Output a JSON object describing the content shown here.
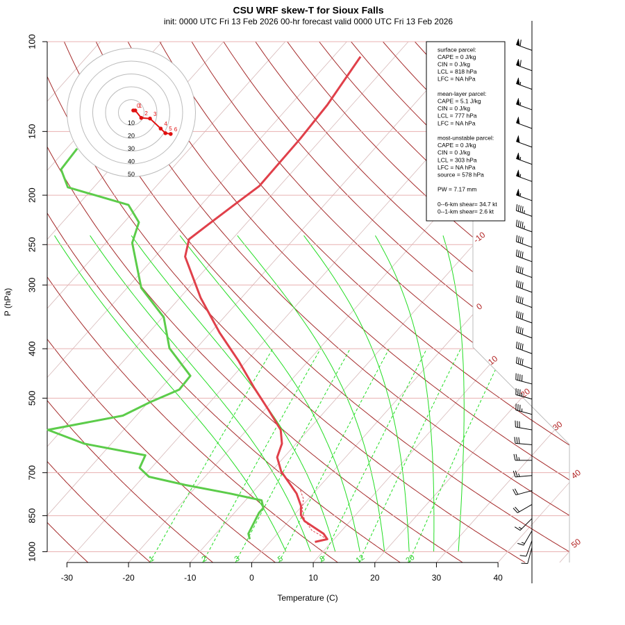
{
  "chart_data": {
    "type": "skewt",
    "title": "CSU WRF skew-T for Sioux Falls",
    "subtitle": "init: 0000 UTC Fri 13 Feb 2026     00-hr forecast valid 0000 UTC Fri 13 Feb 2026",
    "x_label": "Temperature (C)",
    "y_label": "P (hPa)",
    "xlim": [
      -33.2,
      51.6
    ],
    "ylim": [
      1050,
      100
    ],
    "log_y": true,
    "xticks": [
      -30,
      -20,
      -10,
      0,
      10,
      20,
      30,
      40
    ],
    "yticks": [
      100,
      150,
      200,
      250,
      300,
      400,
      500,
      700,
      850,
      1000
    ],
    "series": [
      {
        "color": "#e0404a",
        "width": 3,
        "dashed": false,
        "pressure": [
          957,
          945,
          922,
          871,
          847,
          813,
          769,
          696,
          653,
          614,
          577,
          525,
          478,
          422,
          372,
          318,
          264,
          244,
          228,
          207,
          192,
          155,
          133,
          107
        ],
        "values": [
          7.3,
          8.9,
          7.5,
          2.6,
          1.1,
          -0.2,
          -2.7,
          -8.4,
          -11.1,
          -12.3,
          -14.5,
          -19.6,
          -24.8,
          -31.4,
          -38.5,
          -46.6,
          -55.1,
          -57.0,
          -56.0,
          -54.5,
          -53.3,
          -53.5,
          -54.0,
          -55.6
        ]
      },
      {
        "color": "#5ccc4a",
        "width": 3,
        "dashed": false,
        "pressure": [
          945,
          922,
          839,
          821,
          793,
          769,
          740,
          713,
          685,
          647,
          614,
          577,
          541,
          509,
          481,
          452,
          399,
          347,
          304,
          248,
          226,
          209,
          193,
          178,
          162
        ],
        "values": [
          -3.7,
          -4.7,
          -6.0,
          -6.0,
          -7.4,
          -13.5,
          -22.0,
          -29.1,
          -31.9,
          -32.8,
          -44.4,
          -52.3,
          -42.2,
          -39.7,
          -36.8,
          -37.0,
          -44.4,
          -49.8,
          -57.7,
          -65.7,
          -67.6,
          -71.8,
          -84.2,
          -87.9,
          -88.3
        ]
      },
      {
        "color": "#e0404a",
        "width": 1,
        "dashed": true,
        "pressure": [
          945,
          908,
          866,
          826,
          788,
          752
        ],
        "values": [
          8.9,
          5.1,
          2.4,
          0.5,
          -0.8,
          -2.9
        ]
      }
    ],
    "isotherm_labels": [
      -10,
      0,
      10,
      20,
      30,
      40,
      50
    ],
    "mixing_ratio_labels": [
      1,
      2,
      3,
      5,
      8,
      12,
      20
    ],
    "wind": {
      "pressure": [
        104,
        114,
        124,
        136,
        148,
        161,
        174,
        188,
        205,
        220,
        236,
        253,
        270,
        290,
        310,
        332,
        356,
        381,
        409,
        438,
        469,
        502,
        538,
        577,
        617,
        662,
        709,
        759,
        808,
        861,
        910,
        951,
        981
      ],
      "speed": [
        60,
        60,
        55,
        55,
        50,
        50,
        55,
        55,
        55,
        45,
        45,
        40,
        40,
        40,
        40,
        40,
        40,
        40,
        40,
        40,
        40,
        35,
        35,
        30,
        30,
        25,
        25,
        20,
        20,
        15,
        15,
        10,
        10
      ],
      "direction": [
        290,
        290,
        290,
        290,
        290,
        290,
        290,
        290,
        290,
        290,
        290,
        290,
        290,
        290,
        290,
        290,
        290,
        290,
        290,
        290,
        285,
        285,
        285,
        280,
        275,
        270,
        265,
        255,
        240,
        225,
        210,
        200,
        195
      ]
    },
    "hodograph": {
      "rings": [
        10,
        20,
        30,
        40,
        50
      ],
      "heights": [
        0,
        1,
        2,
        3,
        4,
        5,
        6
      ],
      "u": [
        1.6,
        3.1,
        7.8,
        14.6,
        22.9,
        26.6,
        30.7
      ],
      "v": [
        1.6,
        1.6,
        -4.2,
        -4.7,
        -12.5,
        -16.1,
        -16.7
      ],
      "color": "#e01010"
    },
    "info_box": [
      [
        "surface parcel:",
        "CAPE = 0 J/kg",
        "CIN = 0 J/kg",
        "LCL = 818 hPa",
        "LFC = NA hPa"
      ],
      [
        "mean-layer parcel:",
        "CAPE = 5.1 J/kg",
        "CIN = 0 J/kg",
        "LCL = 777 hPa",
        "LFC = NA hPa"
      ],
      [
        "most-unstable parcel:",
        "CAPE = 0 J/kg",
        "CIN = 0 J/kg",
        "LCL = 303 hPa",
        "LFC = NA hPa",
        "source = 578 hPa"
      ],
      [
        "PW =  7.17 mm"
      ],
      [
        "0--6-km shear= 34.7 kt",
        "0--1-km shear= 2.6 kt"
      ]
    ]
  }
}
